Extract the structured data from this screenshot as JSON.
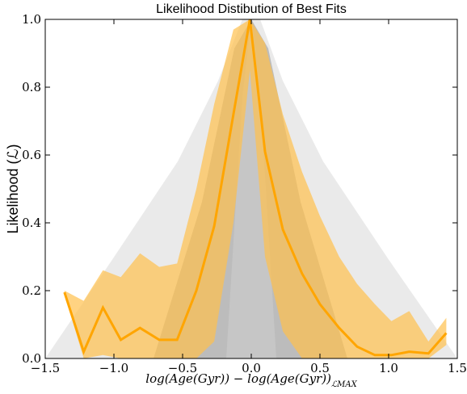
{
  "chart_data": {
    "type": "line",
    "title": "Likelihood Distibution of Best Fits",
    "xlabel": "log(Age(Gyr)) − log(Age(Gyr))",
    "xlabel_sub": "ℒMAX",
    "ylabel": "Likelihood (ℒ)",
    "x": [
      -1.36,
      -1.22,
      -1.08,
      -0.95,
      -0.81,
      -0.67,
      -0.54,
      -0.4,
      -0.27,
      -0.13,
      -0.01,
      0.1,
      0.23,
      0.37,
      0.5,
      0.64,
      0.77,
      0.9,
      1.02,
      1.15,
      1.29,
      1.42
    ],
    "values": [
      0.195,
      0.02,
      0.15,
      0.055,
      0.09,
      0.055,
      0.055,
      0.2,
      0.39,
      0.72,
      1.0,
      0.61,
      0.38,
      0.25,
      0.16,
      0.09,
      0.035,
      0.01,
      0.01,
      0.02,
      0.015,
      0.075
    ],
    "band_upper": [
      0.2,
      0.17,
      0.26,
      0.24,
      0.31,
      0.27,
      0.28,
      0.5,
      0.75,
      0.97,
      1.0,
      0.93,
      0.72,
      0.55,
      0.42,
      0.3,
      0.22,
      0.16,
      0.11,
      0.14,
      0.05,
      0.12
    ],
    "band_lower": [
      0.19,
      0.0,
      0.01,
      0.0,
      0.0,
      0.0,
      0.0,
      0.0,
      0.05,
      0.4,
      0.85,
      0.3,
      0.08,
      0.0,
      0.0,
      0.0,
      0.0,
      0.0,
      0.0,
      0.0,
      0.0,
      0.04
    ],
    "color": "#ffa500",
    "band_color": "#ffc04d",
    "xlim": [
      -1.5,
      1.5
    ],
    "ylim": [
      0,
      1
    ],
    "xticks": [
      {
        "value": -1.5,
        "label": "−1.5"
      },
      {
        "value": -1.0,
        "label": "−1.0"
      },
      {
        "value": -0.5,
        "label": "−0.5"
      },
      {
        "value": 0,
        "label": "0.0"
      },
      {
        "value": 0.5,
        "label": "0.5"
      },
      {
        "value": 1.0,
        "label": "1.0"
      },
      {
        "value": 1.5,
        "label": "1.5"
      }
    ],
    "yticks": [
      {
        "value": 0,
        "label": "0.0"
      },
      {
        "value": 0.2,
        "label": "0.2"
      },
      {
        "value": 0.4,
        "label": "0.4"
      },
      {
        "value": 0.6,
        "label": "0.6"
      },
      {
        "value": 0.8,
        "label": "0.8"
      },
      {
        "value": 1.0,
        "label": "1.0"
      }
    ]
  }
}
